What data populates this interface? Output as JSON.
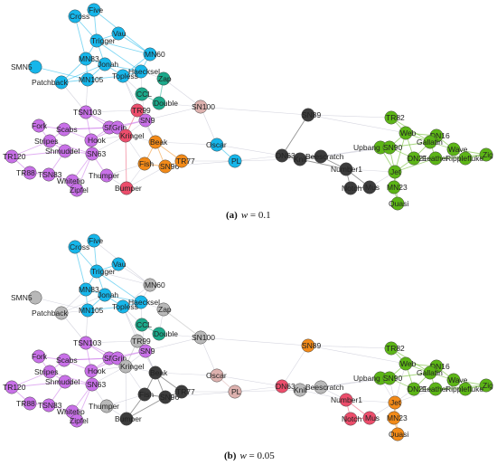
{
  "colors": {
    "blue": "#16b6ea",
    "purple": "#c870e8",
    "green": "#5cb516",
    "orange": "#f28a18",
    "red": "#ec4d6b",
    "teal": "#1ba98a",
    "dark": "#3c3c3c",
    "gray": "#b8b8b8",
    "pink": "#ddb1ae"
  },
  "panels": [
    {
      "caption": {
        "letter": "(a)",
        "var": "w",
        "rest": " = 0.1"
      },
      "nodes": {
        "Five": "blue",
        "Cross": "blue",
        "Vau": "blue",
        "Trigger": "blue",
        "MN60": "blue",
        "MN83": "blue",
        "Jonah": "blue",
        "SMN5": "blue",
        "Haecksel": "blue",
        "Zap": "teal",
        "Patchback": "blue",
        "MN105": "blue",
        "Topless": "blue",
        "CCL": "teal",
        "Double": "teal",
        "TSN103": "purple",
        "TR99": "red",
        "SN100": "pink",
        "SN9": "purple",
        "SN4": "purple",
        "Grin": "purple",
        "Scabs": "purple",
        "Fork": "purple",
        "Stripes": "purple",
        "Hook": "purple",
        "Kringel": "red",
        "Beak": "orange",
        "Oscar": "blue",
        "TR120": "purple",
        "SN63": "purple",
        "Shmuddel": "purple",
        "TR88": "purple",
        "TSN83": "purple",
        "Whitetip": "purple",
        "Zipfel": "purple",
        "Thumper": "purple",
        "Fish": "orange",
        "SN96": "orange",
        "TR77": "orange",
        "PL": "blue",
        "Bumper": "red",
        "SN89": "dark",
        "DN63": "dark",
        "Knit": "dark",
        "Beescratch": "dark",
        "Number1": "dark",
        "Notch": "dark",
        "Mus": "dark",
        "TR82": "green",
        "Web": "green",
        "DN16": "green",
        "Upbang": "green",
        "SN90": "green",
        "Gallatin": "green",
        "Wave": "green",
        "Zig": "green",
        "DN21": "green",
        "Feather": "green",
        "Ripplefluke": "green",
        "Jet": "green",
        "MN23": "green",
        "Quasi": "green"
      }
    },
    {
      "caption": {
        "letter": "(b)",
        "var": "w",
        "rest": " = 0.05"
      },
      "nodes": {
        "Five": "blue",
        "Cross": "blue",
        "Vau": "blue",
        "Trigger": "blue",
        "MN60": "gray",
        "MN83": "blue",
        "Jonah": "blue",
        "SMN5": "gray",
        "Haecksel": "blue",
        "Zap": "gray",
        "Patchback": "gray",
        "MN105": "blue",
        "Topless": "blue",
        "CCL": "teal",
        "Double": "teal",
        "TSN103": "purple",
        "TR99": "gray",
        "SN100": "gray",
        "SN9": "purple",
        "SN4": "purple",
        "Grin": "purple",
        "Scabs": "purple",
        "Fork": "purple",
        "Stripes": "purple",
        "Hook": "purple",
        "Kringel": "gray",
        "Beak": "dark",
        "Oscar": "pink",
        "TR120": "purple",
        "SN63": "purple",
        "Shmuddel": "purple",
        "TR88": "purple",
        "TSN83": "purple",
        "Whitetip": "purple",
        "Zipfel": "purple",
        "Thumper": "gray",
        "Fish": "dark",
        "SN96": "dark",
        "TR77": "dark",
        "PL": "pink",
        "Bumper": "dark",
        "SN89": "orange",
        "DN63": "red",
        "Knit": "gray",
        "Beescratch": "gray",
        "Number1": "red",
        "Notch": "red",
        "Mus": "red",
        "TR82": "green",
        "Web": "green",
        "DN16": "green",
        "Upbang": "green",
        "SN90": "green",
        "Gallatin": "green",
        "Wave": "green",
        "Zig": "green",
        "DN21": "green",
        "Feather": "green",
        "Ripplefluke": "green",
        "Jet": "orange",
        "MN23": "orange",
        "Quasi": "orange"
      }
    }
  ]
}
